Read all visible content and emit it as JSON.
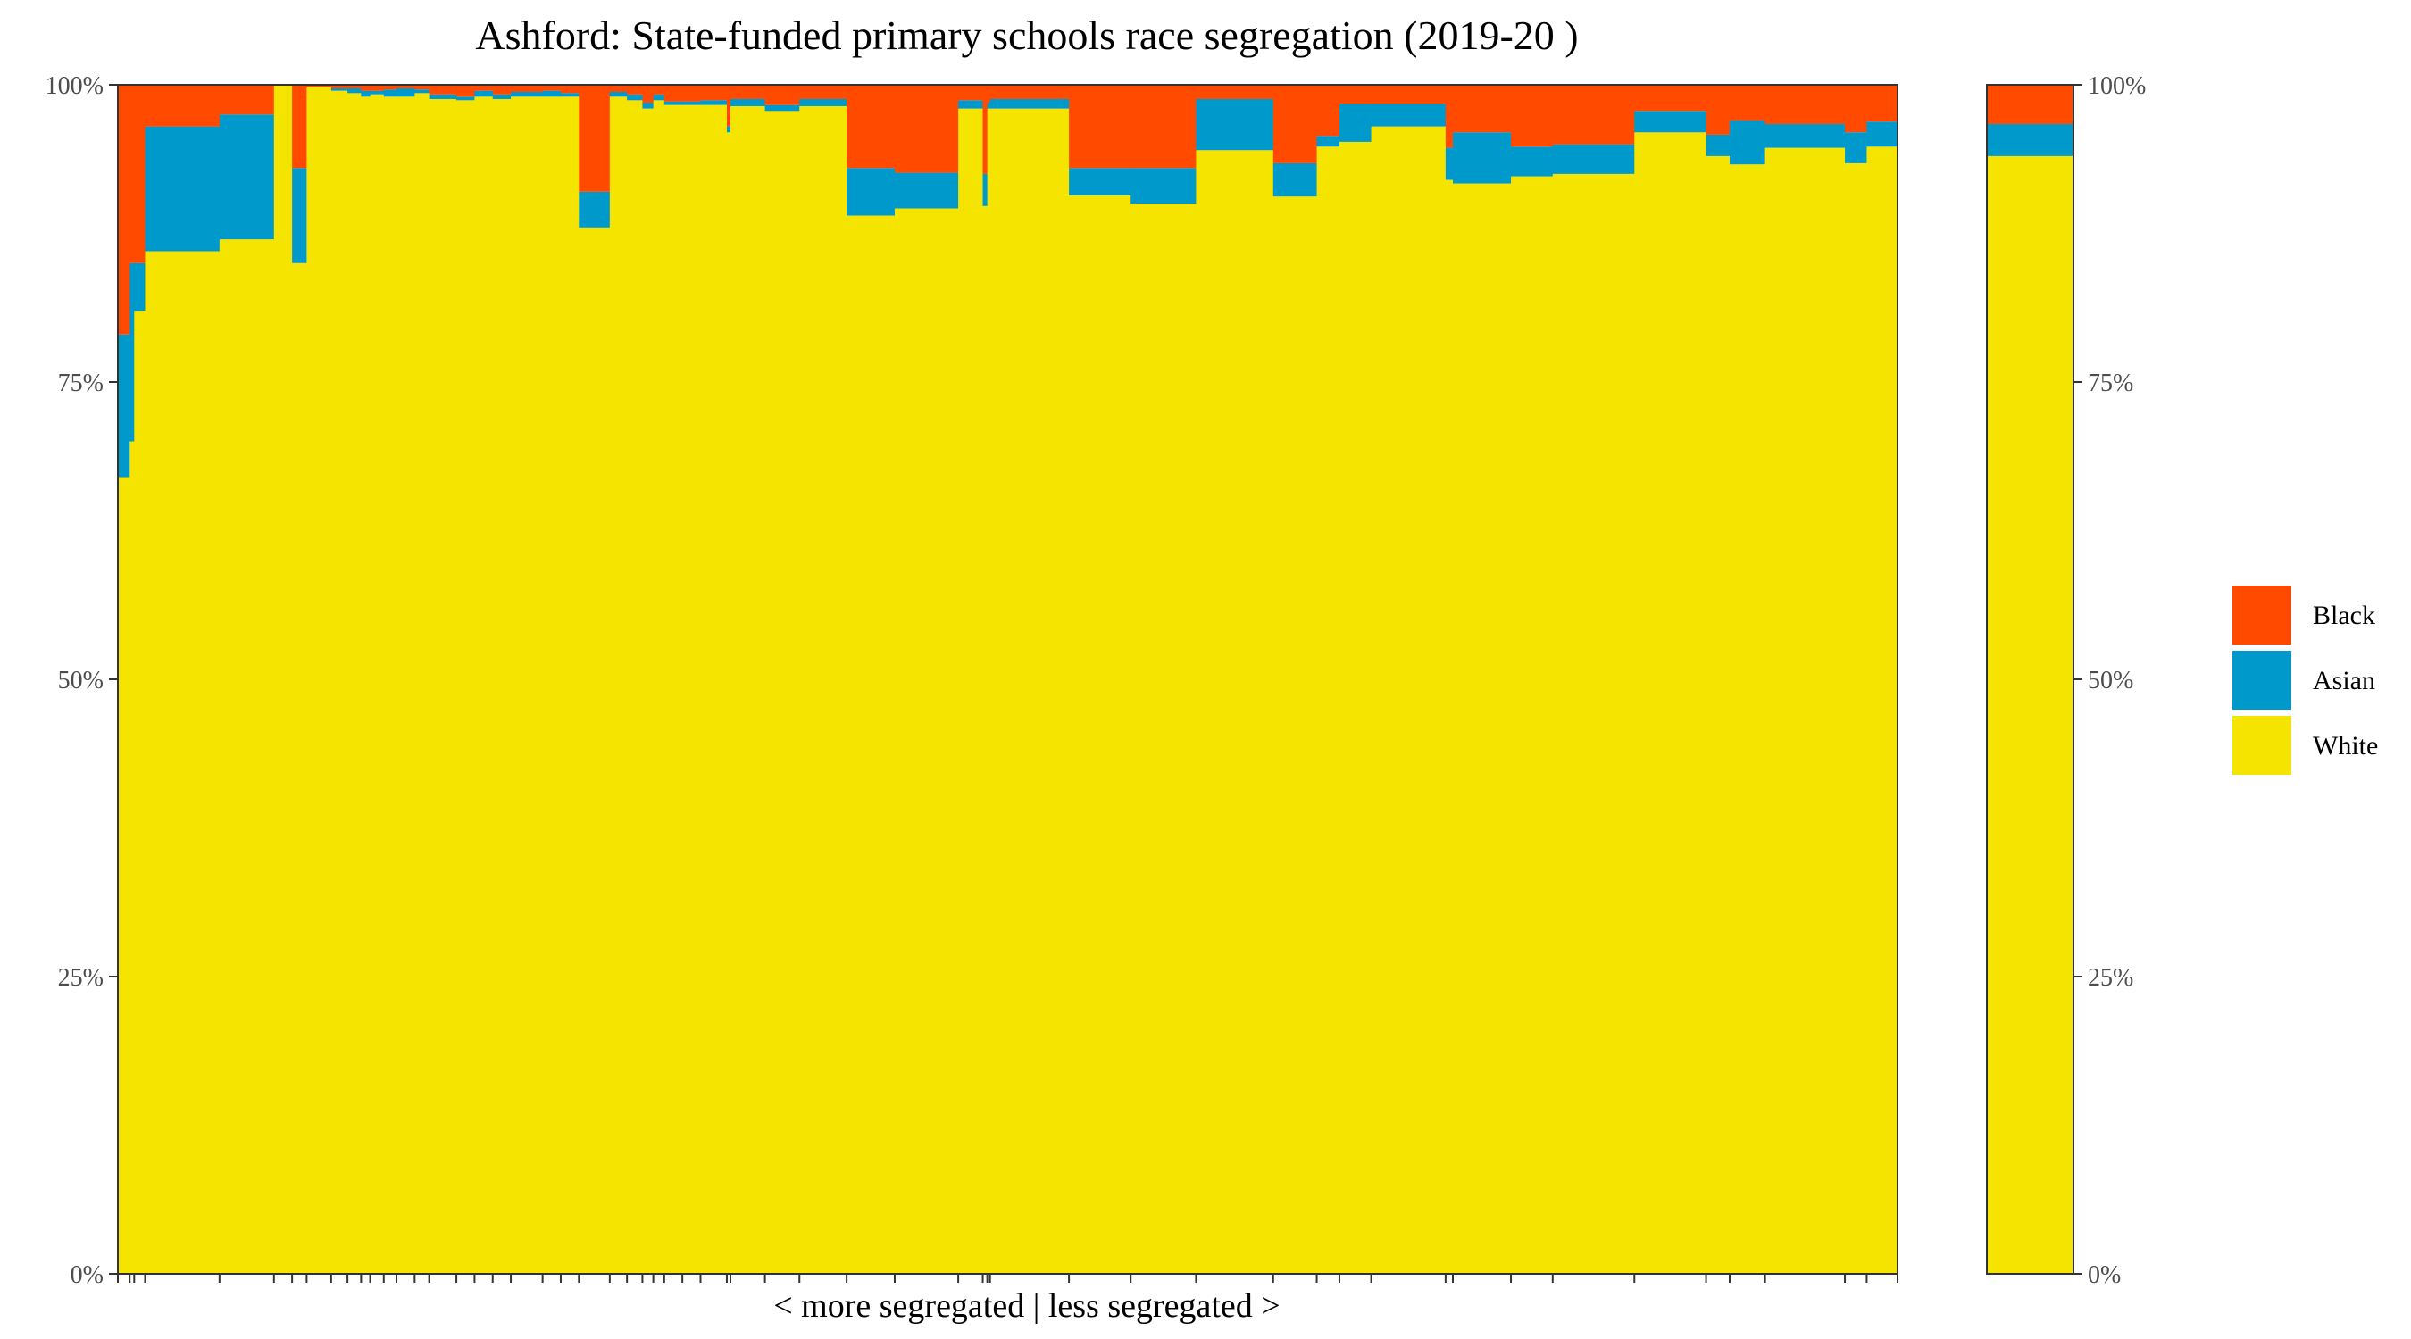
{
  "chart_data": {
    "type": "stacked-bar-variable-width",
    "title": "Ashford: State-funded primary schools race segregation (2019-20 )",
    "xlabel": "< more segregated | less segregated >",
    "ylabel": "",
    "y_ticks": [
      "0%",
      "25%",
      "50%",
      "75%",
      "100%"
    ],
    "ylim": [
      0,
      100
    ],
    "stack_order": [
      "White",
      "Asian",
      "Black"
    ],
    "colors": {
      "White": "#F5E400",
      "Asian": "#0099CC",
      "Black": "#FF4A00"
    },
    "legend": [
      {
        "name": "Black",
        "color": "#FF4A00"
      },
      {
        "name": "Asian",
        "color": "#0099CC"
      },
      {
        "name": "White",
        "color": "#F5E400"
      }
    ],
    "legend_position": "right",
    "grid": false,
    "schools": [
      {
        "width": 13,
        "White": 67.0,
        "Asian": 12.0,
        "Black": 21.0
      },
      {
        "width": 5,
        "White": 70.0,
        "Asian": 15.0,
        "Black": 15.0
      },
      {
        "width": 12,
        "White": 81.0,
        "Asian": 4.0,
        "Black": 15.0
      },
      {
        "width": 82,
        "White": 86.0,
        "Asian": 10.5,
        "Black": 3.5
      },
      {
        "width": 60,
        "White": 87.0,
        "Asian": 10.5,
        "Black": 2.5
      },
      {
        "width": 20,
        "White": 100.0,
        "Asian": 0.0,
        "Black": 0.0
      },
      {
        "width": 16,
        "White": 85.0,
        "Asian": 8.0,
        "Black": 7.0
      },
      {
        "width": 27,
        "White": 99.8,
        "Asian": 0.0,
        "Black": 0.2
      },
      {
        "width": 18,
        "White": 99.5,
        "Asian": 0.2,
        "Black": 0.3
      },
      {
        "width": 15,
        "White": 99.3,
        "Asian": 0.4,
        "Black": 0.3
      },
      {
        "width": 10,
        "White": 99.0,
        "Asian": 0.5,
        "Black": 0.5
      },
      {
        "width": 15,
        "White": 99.2,
        "Asian": 0.3,
        "Black": 0.5
      },
      {
        "width": 14,
        "White": 99.0,
        "Asian": 0.6,
        "Black": 0.4
      },
      {
        "width": 20,
        "White": 99.0,
        "Asian": 0.7,
        "Black": 0.3
      },
      {
        "width": 16,
        "White": 99.3,
        "Asian": 0.3,
        "Black": 0.4
      },
      {
        "width": 30,
        "White": 98.8,
        "Asian": 0.4,
        "Black": 0.8
      },
      {
        "width": 20,
        "White": 98.7,
        "Asian": 0.3,
        "Black": 1.0
      },
      {
        "width": 20,
        "White": 99.0,
        "Asian": 0.5,
        "Black": 0.5
      },
      {
        "width": 20,
        "White": 98.8,
        "Asian": 0.4,
        "Black": 0.8
      },
      {
        "width": 35,
        "White": 99.0,
        "Asian": 0.4,
        "Black": 0.6
      },
      {
        "width": 20,
        "White": 99.0,
        "Asian": 0.5,
        "Black": 0.5
      },
      {
        "width": 20,
        "White": 99.0,
        "Asian": 0.3,
        "Black": 0.7
      },
      {
        "width": 34,
        "White": 88.0,
        "Asian": 3.0,
        "Black": 9.0
      },
      {
        "width": 19,
        "White": 99.0,
        "Asian": 0.4,
        "Black": 0.6
      },
      {
        "width": 17,
        "White": 98.7,
        "Asian": 0.5,
        "Black": 0.8
      },
      {
        "width": 12,
        "White": 98.0,
        "Asian": 0.5,
        "Black": 1.5
      },
      {
        "width": 12,
        "White": 98.7,
        "Asian": 0.5,
        "Black": 0.8
      },
      {
        "width": 20,
        "White": 98.3,
        "Asian": 0.3,
        "Black": 1.4
      },
      {
        "width": 20,
        "White": 98.3,
        "Asian": 0.3,
        "Black": 1.4
      },
      {
        "width": 29,
        "White": 98.3,
        "Asian": 0.4,
        "Black": 1.3
      },
      {
        "width": 4,
        "White": 96.0,
        "Asian": 0.5,
        "Black": 3.5
      },
      {
        "width": 38,
        "White": 98.2,
        "Asian": 0.6,
        "Black": 1.2
      },
      {
        "width": 38,
        "White": 97.8,
        "Asian": 0.5,
        "Black": 1.7
      },
      {
        "width": 52,
        "White": 98.2,
        "Asian": 0.6,
        "Black": 1.2
      },
      {
        "width": 53,
        "White": 89.0,
        "Asian": 4.0,
        "Black": 7.0
      },
      {
        "width": 70,
        "White": 89.6,
        "Asian": 3.0,
        "Black": 7.4
      },
      {
        "width": 27,
        "White": 98.0,
        "Asian": 0.7,
        "Black": 1.3
      },
      {
        "width": 5,
        "White": 89.8,
        "Asian": 2.7,
        "Black": 7.5
      },
      {
        "width": 3,
        "White": 98.0,
        "Asian": 0.5,
        "Black": 1.5
      },
      {
        "width": 87,
        "White": 98.0,
        "Asian": 0.8,
        "Black": 1.2
      },
      {
        "width": 68,
        "White": 90.7,
        "Asian": 2.3,
        "Black": 7.0
      },
      {
        "width": 72,
        "White": 90.0,
        "Asian": 3.0,
        "Black": 7.0
      },
      {
        "width": 85,
        "White": 94.5,
        "Asian": 4.3,
        "Black": 1.2
      },
      {
        "width": 48,
        "White": 90.6,
        "Asian": 2.8,
        "Black": 6.6
      },
      {
        "width": 25,
        "White": 94.8,
        "Asian": 0.9,
        "Black": 4.3
      },
      {
        "width": 35,
        "White": 95.2,
        "Asian": 3.2,
        "Black": 1.6
      },
      {
        "width": 82,
        "White": 96.5,
        "Asian": 1.9,
        "Black": 1.6
      },
      {
        "width": 8,
        "White": 92.0,
        "Asian": 2.7,
        "Black": 5.3
      },
      {
        "width": 64,
        "White": 91.7,
        "Asian": 4.3,
        "Black": 4.0
      },
      {
        "width": 46,
        "White": 92.3,
        "Asian": 2.5,
        "Black": 5.2
      },
      {
        "width": 90,
        "White": 92.5,
        "Asian": 2.5,
        "Black": 5.0
      },
      {
        "width": 79,
        "White": 96.0,
        "Asian": 1.8,
        "Black": 2.2
      },
      {
        "width": 26,
        "White": 94.0,
        "Asian": 1.8,
        "Black": 4.2
      },
      {
        "width": 39,
        "White": 93.3,
        "Asian": 3.7,
        "Black": 3.0
      },
      {
        "width": 88,
        "White": 94.7,
        "Asian": 2.0,
        "Black": 3.3
      },
      {
        "width": 24,
        "White": 93.4,
        "Asian": 2.6,
        "Black": 4.0
      },
      {
        "width": 34,
        "White": 94.8,
        "Asian": 2.1,
        "Black": 3.1
      }
    ],
    "overall": {
      "White": 94.0,
      "Asian": 2.7,
      "Black": 3.3
    }
  }
}
